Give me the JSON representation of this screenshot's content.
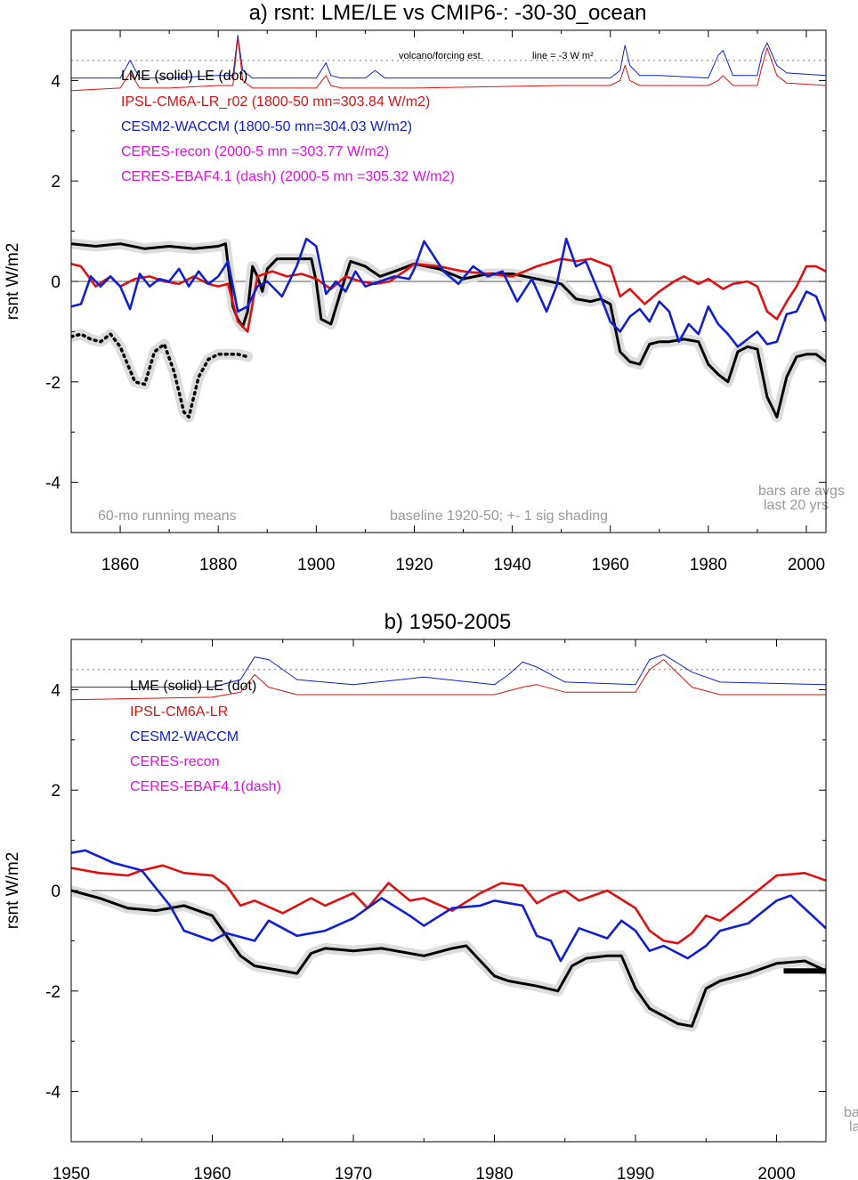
{
  "colors": {
    "lme": "#000000",
    "ipsl": "#e01010",
    "cesm": "#1020d0",
    "ceres": "#e010e0",
    "note": "#999999",
    "shade": "#dddddd"
  },
  "panel_a": {
    "title": "a) rsnt: LME/LE vs CMIP6-: -30-30_ocean",
    "ylabel": "rsnt W/m2",
    "legend": {
      "lme": "LME (solid)   LE (dot)",
      "ipsl": "IPSL-CM6A-LR_r02 (1800-50 mn=303.84 W/m2)",
      "cesm": "CESM2-WACCM (1800-50 mn=304.03 W/m2)",
      "ceres": "CERES-recon (2000-5 mn =303.77 W/m2)",
      "ebaf": "CERES-EBAF4.1 (dash) (2000-5 mn =305.32 W/m2)"
    },
    "volcano_label": "volcano/forcing est.",
    "line_label": "line = -3 W m²",
    "note_left": "60-mo running means",
    "note_mid": "baseline 1920-50; +- 1 sig shading",
    "note_bars1": "bars are avgs",
    "note_bars2": "last 20 yrs",
    "xticks": [
      "1860",
      "1880",
      "1900",
      "1920",
      "1940",
      "1960",
      "1980",
      "2000"
    ],
    "yticks": [
      "4",
      "2",
      "0",
      "-2",
      "-4"
    ]
  },
  "panel_b": {
    "title": "b) 1950-2005",
    "ylabel": "rsnt W/m2",
    "legend": {
      "lme": "LME (solid)   LE (dot)",
      "ipsl": "IPSL-CM6A-LR",
      "cesm": "CESM2-WACCM",
      "ceres": "CERES-recon",
      "ebaf": "CERES-EBAF4.1(dash)"
    },
    "note_bars1": "ba",
    "note_bars2": "la",
    "xticks": [
      "1950",
      "1960",
      "1970",
      "1980",
      "1990",
      "2000"
    ],
    "yticks": [
      "4",
      "2",
      "0",
      "-2",
      "-4"
    ]
  },
  "chart_data": [
    {
      "type": "line",
      "title": "a) rsnt: LME/LE vs CMIP6-: -30-30_ocean",
      "xlabel": "",
      "ylabel": "rsnt W/m2",
      "xlim": [
        1850,
        2004
      ],
      "ylim": [
        -5,
        5
      ],
      "grid": false,
      "reference_lines": [
        {
          "y": 0
        },
        {
          "y": 4.4,
          "style": "dotted"
        }
      ],
      "series": [
        {
          "name": "LME (solid)",
          "x": [
            1850,
            1855,
            1860,
            1865,
            1870,
            1875,
            1880,
            1881.5,
            1883,
            1884,
            1885,
            1886,
            1887,
            1888,
            1889,
            1890,
            1892,
            1895,
            1899,
            1900,
            1901,
            1903,
            1905,
            1907,
            1910,
            1913,
            1916,
            1920,
            1925,
            1930,
            1935,
            1940,
            1945,
            1950,
            1953,
            1956,
            1958,
            1960,
            1962,
            1964,
            1966,
            1968,
            1970,
            1972,
            1975,
            1978,
            1980,
            1982,
            1984,
            1986,
            1988,
            1990,
            1992,
            1994,
            1996,
            1998,
            2000,
            2002,
            2004
          ],
          "y": [
            0.75,
            0.7,
            0.75,
            0.65,
            0.7,
            0.65,
            0.7,
            0.75,
            -0.5,
            -0.75,
            -0.9,
            -0.6,
            0.3,
            0.1,
            -0.2,
            0.25,
            0.45,
            0.45,
            0.45,
            0.0,
            -0.75,
            -0.85,
            -0.2,
            0.4,
            0.3,
            0.1,
            0.2,
            0.35,
            0.25,
            0.05,
            0.15,
            0.15,
            0.05,
            -0.05,
            -0.35,
            -0.4,
            -0.35,
            -0.45,
            -1.4,
            -1.6,
            -1.65,
            -1.25,
            -1.2,
            -1.2,
            -1.15,
            -1.2,
            -1.65,
            -1.85,
            -2.0,
            -1.4,
            -1.3,
            -1.35,
            -2.3,
            -2.7,
            -1.9,
            -1.5,
            -1.45,
            -1.45,
            -1.6
          ]
        },
        {
          "name": "LE (dot)",
          "x": [
            1850,
            1852,
            1854,
            1856,
            1858,
            1860,
            1863,
            1865,
            1867,
            1869,
            1871,
            1873,
            1874,
            1876,
            1878,
            1880,
            1882,
            1884,
            1886
          ],
          "y": [
            -1.1,
            -1.05,
            -1.15,
            -1.2,
            -1.05,
            -1.3,
            -2.0,
            -2.05,
            -1.4,
            -1.25,
            -1.8,
            -2.6,
            -2.7,
            -1.9,
            -1.55,
            -1.45,
            -1.45,
            -1.45,
            -1.5
          ]
        },
        {
          "name": "IPSL-CM6A-LR_r02",
          "x": [
            1850,
            1852,
            1855,
            1858,
            1860,
            1863,
            1866,
            1869,
            1872,
            1875,
            1878,
            1880,
            1882,
            1884,
            1886,
            1888,
            1891,
            1894,
            1897,
            1900,
            1903,
            1906,
            1909,
            1912,
            1915,
            1918,
            1920,
            1925,
            1930,
            1935,
            1940,
            1945,
            1950,
            1953,
            1956,
            1960,
            1962,
            1964,
            1967,
            1970,
            1973,
            1975,
            1978,
            1980,
            1983,
            1985,
            1988,
            1990,
            1992,
            1994,
            1996,
            1998,
            2000,
            2002,
            2004
          ],
          "y": [
            0.35,
            0.3,
            -0.1,
            0.1,
            -0.1,
            0.05,
            0.1,
            0.0,
            -0.05,
            0.1,
            -0.05,
            -0.1,
            -0.05,
            -0.8,
            -1.0,
            0.1,
            0.2,
            0.1,
            0.15,
            0.05,
            -0.15,
            0.1,
            0.0,
            -0.05,
            0.0,
            0.2,
            0.35,
            0.3,
            0.2,
            0.15,
            0.1,
            0.3,
            0.45,
            0.4,
            0.45,
            0.3,
            -0.3,
            -0.15,
            -0.45,
            -0.2,
            0.0,
            0.1,
            -0.05,
            0.05,
            -0.15,
            -0.05,
            0.0,
            -0.1,
            -0.6,
            -0.75,
            -0.4,
            -0.1,
            0.3,
            0.3,
            0.2
          ]
        },
        {
          "name": "CESM2-WACCM",
          "x": [
            1850,
            1852,
            1854,
            1856,
            1858,
            1860,
            1862,
            1864,
            1866,
            1868,
            1870,
            1872,
            1874,
            1876,
            1878,
            1880,
            1882,
            1884,
            1886,
            1888,
            1890,
            1893,
            1896,
            1898,
            1900,
            1902,
            1904,
            1906,
            1908,
            1910,
            1913,
            1916,
            1919,
            1920,
            1922,
            1924,
            1926,
            1929,
            1932,
            1935,
            1938,
            1941,
            1944,
            1947,
            1949,
            1951,
            1953,
            1955,
            1958,
            1960,
            1962,
            1964,
            1966,
            1968,
            1970,
            1972,
            1974,
            1976,
            1978,
            1980,
            1982,
            1984,
            1986,
            1988,
            1990,
            1992,
            1994,
            1996,
            1998,
            2000,
            2002,
            2004
          ],
          "y": [
            -0.5,
            -0.45,
            0.1,
            -0.1,
            0.1,
            -0.1,
            -0.55,
            0.15,
            -0.1,
            0.05,
            0.0,
            0.25,
            -0.1,
            0.2,
            -0.05,
            0.1,
            0.4,
            -0.6,
            -0.5,
            -0.1,
            0.0,
            -0.3,
            0.3,
            0.85,
            0.7,
            -0.25,
            0.0,
            -0.2,
            0.2,
            -0.1,
            0.0,
            0.1,
            0.05,
            0.25,
            0.8,
            0.5,
            0.2,
            -0.05,
            0.3,
            0.1,
            0.2,
            -0.4,
            0.05,
            -0.6,
            -0.1,
            0.85,
            0.3,
            0.4,
            -0.3,
            -0.8,
            -1.0,
            -0.7,
            -0.55,
            -0.8,
            -0.4,
            -0.6,
            -1.2,
            -0.85,
            -1.05,
            -0.5,
            -0.85,
            -1.05,
            -1.3,
            -1.15,
            -1.0,
            -1.25,
            -1.2,
            -0.65,
            -0.6,
            -0.2,
            -0.3,
            -0.8
          ]
        },
        {
          "name": "volcano/forcing est. (LME)",
          "x": [
            1850,
            1860,
            1862,
            1864,
            1870,
            1880,
            1883,
            1884,
            1885,
            1887,
            1890,
            1900,
            1902,
            1903,
            1905,
            1910,
            1912,
            1914,
            1920,
            1950,
            1960,
            1962,
            1963,
            1964,
            1966,
            1970,
            1980,
            1982,
            1983,
            1985,
            1990,
            1991,
            1992,
            1994,
            1996,
            2004
          ],
          "y": [
            4.05,
            4.05,
            4.4,
            4.05,
            4.05,
            4.1,
            4.1,
            4.9,
            4.2,
            4.05,
            4.05,
            4.05,
            4.35,
            4.1,
            4.05,
            4.05,
            4.2,
            4.05,
            4.05,
            4.05,
            4.05,
            4.2,
            4.7,
            4.3,
            4.1,
            4.1,
            4.05,
            4.5,
            4.6,
            4.1,
            4.1,
            4.55,
            4.75,
            4.3,
            4.15,
            4.1
          ]
        },
        {
          "name": "volcano/forcing est. (IPSL)",
          "x": [
            1850,
            1860,
            1862,
            1864,
            1870,
            1880,
            1883,
            1884,
            1885,
            1887,
            1890,
            1900,
            1902,
            1903,
            1905,
            1910,
            1920,
            1950,
            1960,
            1962,
            1963,
            1964,
            1966,
            1970,
            1980,
            1982,
            1983,
            1985,
            1990,
            1991,
            1992,
            1994,
            1996,
            2004
          ],
          "y": [
            3.8,
            3.85,
            4.15,
            3.85,
            3.85,
            3.9,
            3.9,
            4.85,
            4.0,
            3.85,
            3.85,
            3.85,
            4.1,
            3.9,
            3.85,
            3.85,
            3.85,
            3.9,
            3.9,
            4.0,
            4.3,
            4.0,
            3.9,
            3.9,
            3.9,
            4.0,
            4.1,
            3.9,
            3.9,
            4.3,
            4.65,
            4.1,
            3.95,
            3.9
          ]
        }
      ]
    },
    {
      "type": "line",
      "title": "b) 1950-2005",
      "xlabel": "",
      "ylabel": "rsnt W/m2",
      "xlim": [
        1950,
        2003.5
      ],
      "ylim": [
        -5,
        5
      ],
      "grid": false,
      "reference_lines": [
        {
          "y": 0
        },
        {
          "y": 4.4,
          "style": "dotted"
        }
      ],
      "series": [
        {
          "name": "LME (solid)",
          "x": [
            1950,
            1952,
            1954,
            1956,
            1958,
            1960,
            1961,
            1962,
            1963,
            1965,
            1966,
            1967,
            1968,
            1970,
            1972,
            1975,
            1977,
            1978,
            1980,
            1981,
            1983,
            1984.5,
            1985.5,
            1986.5,
            1988,
            1989,
            1990,
            1991,
            1993,
            1994,
            1995,
            1996,
            1998,
            2000,
            2002,
            2003.5
          ],
          "y": [
            0.0,
            -0.15,
            -0.35,
            -0.4,
            -0.3,
            -0.5,
            -0.9,
            -1.3,
            -1.5,
            -1.6,
            -1.65,
            -1.25,
            -1.15,
            -1.2,
            -1.15,
            -1.3,
            -1.15,
            -1.1,
            -1.7,
            -1.8,
            -1.9,
            -2.0,
            -1.5,
            -1.35,
            -1.3,
            -1.3,
            -1.95,
            -2.35,
            -2.65,
            -2.7,
            -1.95,
            -1.8,
            -1.65,
            -1.45,
            -1.4,
            -1.6
          ]
        },
        {
          "name": "IPSL-CM6A-LR",
          "x": [
            1950,
            1952,
            1954,
            1955,
            1956.5,
            1958,
            1960,
            1961,
            1962,
            1963,
            1965,
            1967,
            1968,
            1970,
            1971,
            1972.5,
            1974,
            1975,
            1977,
            1979,
            1980.5,
            1982,
            1983,
            1984,
            1985,
            1986,
            1987,
            1988,
            1990,
            1991,
            1992,
            1993,
            1994,
            1995,
            1996,
            1998,
            2000,
            2002,
            2003.5
          ],
          "y": [
            0.45,
            0.35,
            0.3,
            0.4,
            0.5,
            0.35,
            0.3,
            0.1,
            -0.3,
            -0.2,
            -0.45,
            -0.15,
            -0.3,
            -0.05,
            -0.35,
            0.15,
            -0.2,
            -0.15,
            -0.4,
            -0.05,
            0.15,
            0.1,
            -0.25,
            -0.1,
            0.0,
            -0.2,
            -0.1,
            0.0,
            -0.35,
            -0.8,
            -1.0,
            -1.05,
            -0.85,
            -0.5,
            -0.6,
            -0.15,
            0.3,
            0.35,
            0.2
          ]
        },
        {
          "name": "CESM2-WACCM",
          "x": [
            1950,
            1951,
            1953,
            1955,
            1957,
            1958,
            1960,
            1961,
            1963,
            1964,
            1966,
            1968,
            1970,
            1972,
            1974,
            1975,
            1977,
            1979,
            1980,
            1982,
            1983,
            1984,
            1984.7,
            1986,
            1988,
            1989,
            1990,
            1991,
            1992,
            1993.7,
            1995,
            1996,
            1998,
            2000,
            2001,
            2003.5
          ],
          "y": [
            0.75,
            0.8,
            0.55,
            0.4,
            -0.3,
            -0.8,
            -1.0,
            -0.85,
            -1.0,
            -0.6,
            -0.9,
            -0.8,
            -0.55,
            -0.15,
            -0.5,
            -0.7,
            -0.35,
            -0.3,
            -0.2,
            -0.3,
            -0.9,
            -1.0,
            -1.4,
            -0.75,
            -0.95,
            -0.6,
            -0.8,
            -1.2,
            -1.1,
            -1.35,
            -1.1,
            -0.8,
            -0.65,
            -0.2,
            -0.1,
            -0.75
          ]
        },
        {
          "name": "volcano/forcing est. (LME)",
          "x": [
            1950,
            1960,
            1962,
            1963,
            1964,
            1966,
            1970,
            1975,
            1980,
            1981,
            1982,
            1983,
            1985,
            1990,
            1991,
            1992,
            1994,
            1996,
            2003.5
          ],
          "y": [
            4.05,
            4.05,
            4.2,
            4.65,
            4.6,
            4.2,
            4.1,
            4.25,
            4.1,
            4.3,
            4.55,
            4.45,
            4.15,
            4.1,
            4.6,
            4.7,
            4.35,
            4.15,
            4.1
          ]
        },
        {
          "name": "volcano/forcing est. (IPSL)",
          "x": [
            1950,
            1960,
            1962,
            1963,
            1964,
            1966,
            1970,
            1980,
            1982,
            1983,
            1985,
            1990,
            1991,
            1992,
            1994,
            1996,
            2003.5
          ],
          "y": [
            3.8,
            3.85,
            3.95,
            4.3,
            4.05,
            3.9,
            3.9,
            3.9,
            4.05,
            4.1,
            3.95,
            3.95,
            4.4,
            4.6,
            4.05,
            3.9,
            3.9
          ]
        }
      ],
      "bars": [
        {
          "name": "LME avg last 20 yrs",
          "x": [
            2000.5,
            2003.5
          ],
          "y": -1.6
        }
      ]
    }
  ]
}
